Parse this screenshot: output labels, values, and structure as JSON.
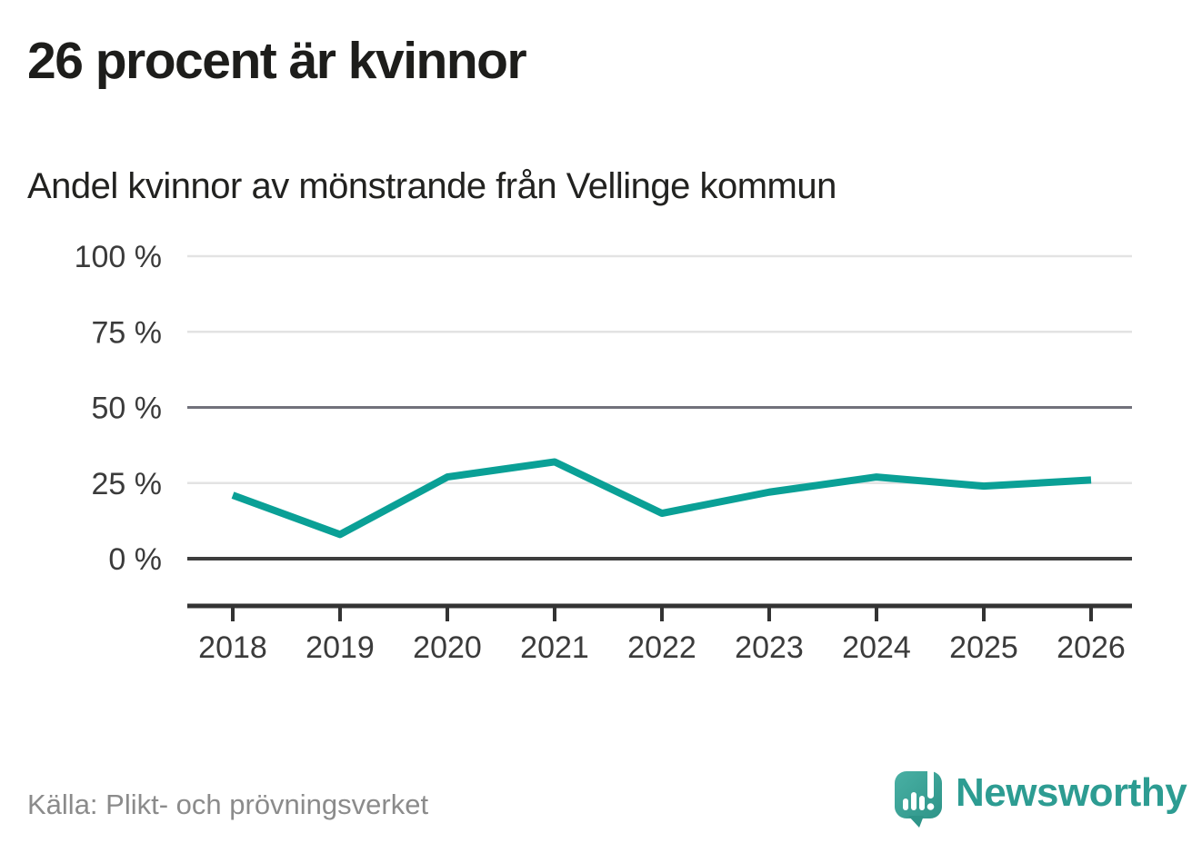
{
  "header": {
    "title": "26 procent är kvinnor",
    "subtitle": "Andel kvinnor av mönstrande från Vellinge kommun"
  },
  "footer": {
    "source": "Källa: Plikt- och prövningsverket",
    "brand": "Newsworthy"
  },
  "chart_data": {
    "type": "line",
    "title": "26 procent är kvinnor",
    "subtitle": "Andel kvinnor av mönstrande från Vellinge kommun",
    "categories": [
      "2018",
      "2019",
      "2020",
      "2021",
      "2022",
      "2023",
      "2024",
      "2025",
      "2026"
    ],
    "series": [
      {
        "name": "Andel kvinnor av mönstrande",
        "values": [
          21,
          8,
          27,
          32,
          15,
          22,
          27,
          24,
          26
        ]
      }
    ],
    "unit": "%",
    "xlabel": "",
    "ylabel": "",
    "ylim": [
      0,
      100
    ],
    "yticks": [
      0,
      25,
      50,
      75,
      100
    ],
    "ytick_suffix": " %",
    "grid": true,
    "legend": "none",
    "colors": {
      "line": "#0aa096",
      "gridline_light": "#e3e3e3",
      "gridline_mid": "#71717b",
      "zero_line": "#3d3d3d",
      "axis": "#333333",
      "tick_label": "#3b3b3b",
      "title": "#1d1d1b",
      "subtitle": "#222220",
      "source": "#8b8b8b",
      "brand": "#2d9c92",
      "logo_teal_light": "#49b0a4",
      "logo_teal_dark": "#2e9488"
    }
  }
}
